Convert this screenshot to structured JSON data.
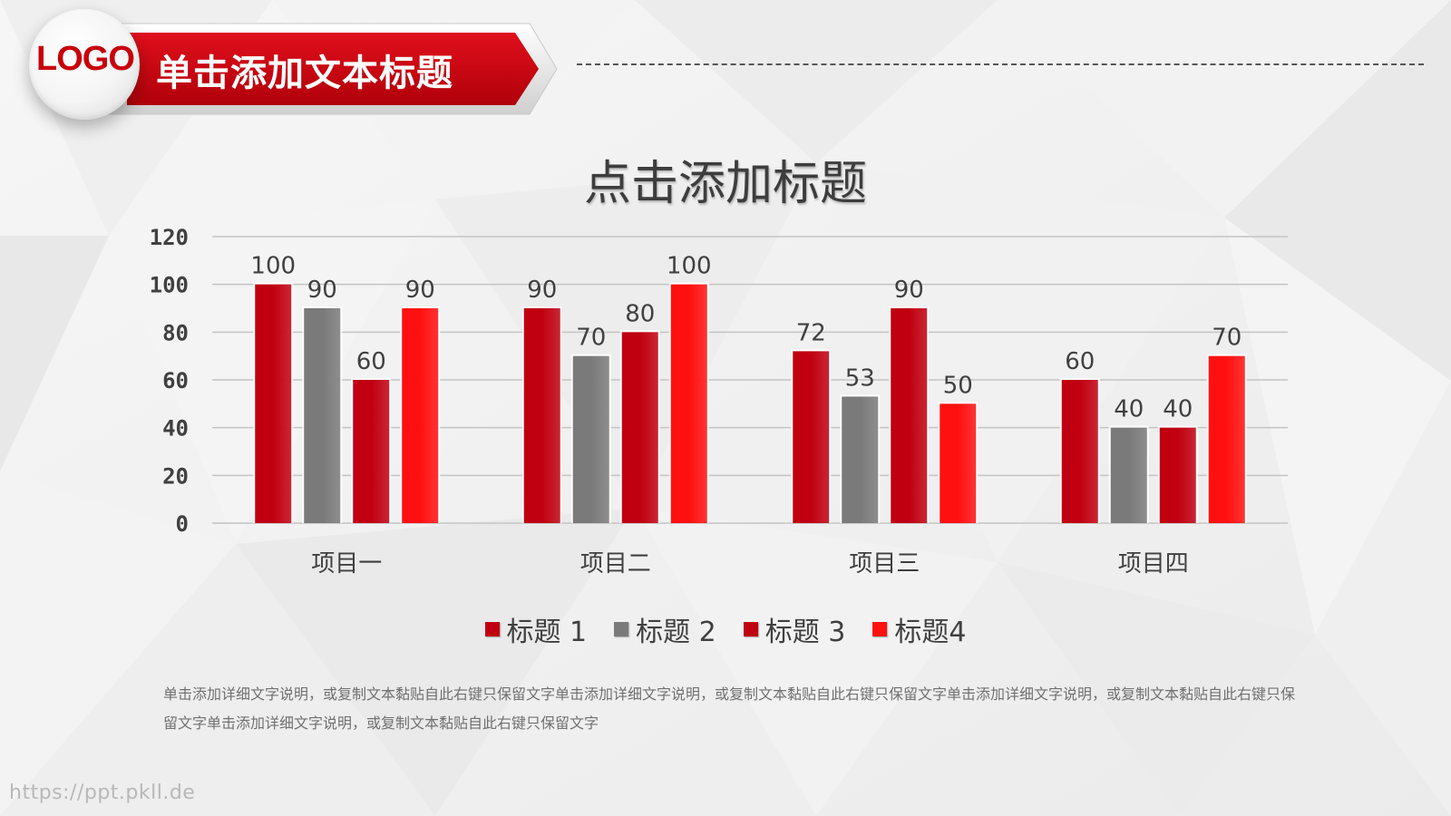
{
  "header": {
    "logo": "LOGO",
    "title": "单击添加文本标题"
  },
  "chart_data": {
    "type": "bar",
    "title": "点击添加标题",
    "categories": [
      "项目一",
      "项目二",
      "项目三",
      "项目四"
    ],
    "series": [
      {
        "name": "标题 1",
        "values": [
          100,
          90,
          72,
          60
        ],
        "color": "#c00010"
      },
      {
        "name": "标题 2",
        "values": [
          90,
          70,
          53,
          40
        ],
        "color": "#7a7a7a"
      },
      {
        "name": "标题 3",
        "values": [
          60,
          80,
          90,
          40
        ],
        "color": "#c00010"
      },
      {
        "name": "标题4",
        "values": [
          90,
          100,
          50,
          70
        ],
        "color": "#ff1010"
      }
    ],
    "ylim": [
      0,
      120
    ],
    "yticks": [
      0,
      20,
      40,
      60,
      80,
      100,
      120
    ],
    "grid": true,
    "legend": "bottom",
    "data_labels": true
  },
  "description": "单击添加详细文字说明，或复制文本黏贴自此右键只保留文字单击添加详细文字说明，或复制文本黏贴自此右键只保留文字单击添加详细文字说明，或复制文本黏贴自此右键只保留文字单击添加详细文字说明，或复制文本黏贴自此右键只保留文字",
  "watermark": "https://ppt.pkll.de",
  "colors": {
    "accent": "#c8000b",
    "bright_red": "#ff1010",
    "gray": "#7a7a7a"
  }
}
